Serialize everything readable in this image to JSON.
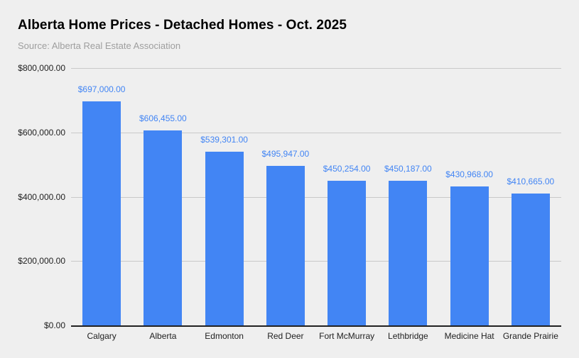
{
  "header": {
    "title": "Alberta Home Prices - Detached Homes - Oct. 2025",
    "subtitle": "Source: Alberta Real Estate Association"
  },
  "colors": {
    "background": "#efefef",
    "bar": "#4285f4",
    "value_label": "#4285f4",
    "gridline": "#c9c9c9",
    "axis_line": "#212121",
    "tick_label": "#212121",
    "title": "#000000",
    "subtitle": "#9e9e9e"
  },
  "chart_data": {
    "type": "bar",
    "title": "Alberta Home Prices - Detached Homes - Oct. 2025",
    "subtitle": "Source: Alberta Real Estate Association",
    "categories": [
      "Calgary",
      "Alberta",
      "Edmonton",
      "Red Deer",
      "Fort McMurray",
      "Lethbridge",
      "Medicine Hat",
      "Grande Prairie"
    ],
    "values": [
      697000,
      606455,
      539301,
      495947,
      450254,
      450187,
      430968,
      410665
    ],
    "data_labels": [
      "$697,000.00",
      "$606,455.00",
      "$539,301.00",
      "$495,947.00",
      "$450,254.00",
      "$450,187.00",
      "$430,968.00",
      "$410,665.00"
    ],
    "y_tick_values": [
      800000,
      600000,
      400000,
      200000,
      0
    ],
    "y_tick_labels": [
      "$800,000.00",
      "$600,000.00",
      "$400,000.00",
      "$200,000.00",
      "$0.00"
    ],
    "ylim": [
      0,
      800000
    ],
    "xlabel": "",
    "ylabel": "",
    "grid": true,
    "legend": "none",
    "bar_color": "#4285f4"
  }
}
